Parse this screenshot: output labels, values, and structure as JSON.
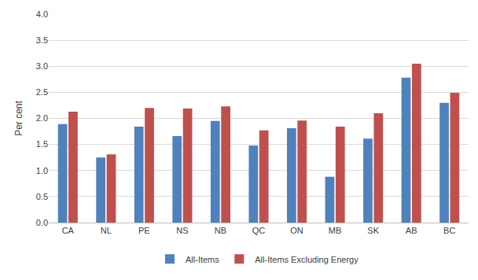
{
  "chart_data": {
    "type": "bar",
    "y_label": "Per cent",
    "categories": [
      "CA",
      "NL",
      "PE",
      "NS",
      "NB",
      "QC",
      "ON",
      "MB",
      "SK",
      "AB",
      "BC"
    ],
    "series": [
      {
        "name": "All-Items",
        "color": "#4f81bd",
        "values": [
          1.89,
          1.25,
          1.84,
          1.66,
          1.95,
          1.48,
          1.81,
          0.88,
          1.61,
          2.78,
          2.3
        ]
      },
      {
        "name": "All-Items Excluding Energy",
        "color": "#c0504d",
        "values": [
          2.13,
          1.31,
          2.2,
          2.19,
          2.23,
          1.77,
          1.96,
          1.84,
          2.1,
          3.05,
          2.49
        ]
      }
    ],
    "ylim": [
      0,
      4
    ],
    "yticks": [
      {
        "value": 0,
        "label": "0.0"
      },
      0.5,
      {
        "value": 1,
        "label": "1.0"
      },
      1.5,
      {
        "value": 2,
        "label": "2.0"
      },
      2.5,
      {
        "value": 3,
        "label": "3.0"
      },
      3.5,
      {
        "value": 4,
        "label": "4.0"
      }
    ],
    "grid": true,
    "legend": "bottom"
  }
}
